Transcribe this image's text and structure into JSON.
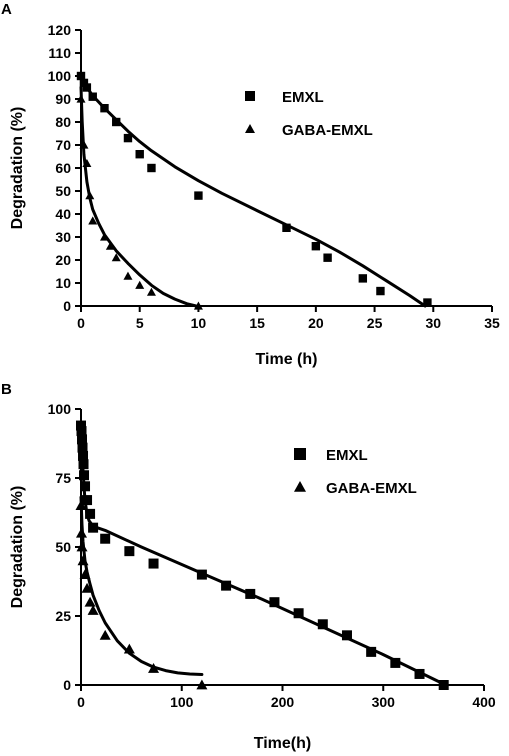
{
  "chart_data": [
    {
      "type": "scatter",
      "panel_label": "A",
      "xlabel": "Time (h)",
      "ylabel": "Degradation (%)",
      "xlim": [
        0,
        35
      ],
      "ylim": [
        0,
        120
      ],
      "xticks": [
        0,
        5,
        10,
        15,
        20,
        25,
        30,
        35
      ],
      "yticks": [
        0,
        10,
        20,
        30,
        40,
        50,
        60,
        70,
        80,
        90,
        100,
        110,
        120
      ],
      "grid": false,
      "legend_position": "right",
      "series": [
        {
          "name": "EMXL",
          "marker": "square",
          "points": [
            [
              0,
              100
            ],
            [
              0.25,
              97
            ],
            [
              0.5,
              95
            ],
            [
              1,
              91
            ],
            [
              2,
              86
            ],
            [
              3,
              80
            ],
            [
              4,
              73
            ],
            [
              5,
              66
            ],
            [
              6,
              60
            ],
            [
              10,
              48
            ],
            [
              17.5,
              34
            ],
            [
              20,
              26
            ],
            [
              21,
              21
            ],
            [
              24,
              12
            ],
            [
              25.5,
              6.5
            ],
            [
              29.5,
              1.5
            ]
          ],
          "fit": [
            [
              0,
              101
            ],
            [
              0.5,
              95
            ],
            [
              1,
              91.5
            ],
            [
              2,
              86
            ],
            [
              3,
              81
            ],
            [
              4,
              76
            ],
            [
              5,
              71.5
            ],
            [
              6,
              67.5
            ],
            [
              8,
              60.5
            ],
            [
              10,
              54.5
            ],
            [
              12,
              49
            ],
            [
              15,
              41.5
            ],
            [
              18,
              34
            ],
            [
              20,
              29
            ],
            [
              22,
              23.5
            ],
            [
              24,
              17.5
            ],
            [
              26,
              11
            ],
            [
              28,
              4.5
            ],
            [
              29.3,
              0
            ]
          ]
        },
        {
          "name": "GABA-EMXL",
          "marker": "triangle",
          "points": [
            [
              0,
              90
            ],
            [
              0.25,
              70
            ],
            [
              0.5,
              62
            ],
            [
              0.75,
              48
            ],
            [
              1,
              37
            ],
            [
              2,
              30
            ],
            [
              2.5,
              26
            ],
            [
              3,
              21
            ],
            [
              4,
              13
            ],
            [
              5,
              9
            ],
            [
              6,
              6
            ],
            [
              10,
              0
            ]
          ],
          "fit": [
            [
              0,
              95
            ],
            [
              0.1,
              80
            ],
            [
              0.25,
              66
            ],
            [
              0.5,
              54
            ],
            [
              0.75,
              47
            ],
            [
              1,
              42
            ],
            [
              1.5,
              36
            ],
            [
              2,
              31
            ],
            [
              3,
              24
            ],
            [
              4,
              18.5
            ],
            [
              5,
              13.5
            ],
            [
              6,
              9
            ],
            [
              7,
              5.5
            ],
            [
              8,
              3
            ],
            [
              9,
              1
            ],
            [
              9.8,
              0
            ]
          ]
        }
      ]
    },
    {
      "type": "scatter",
      "panel_label": "B",
      "xlabel": "Time(h)",
      "ylabel": "Degradation (%)",
      "xlim": [
        0,
        400
      ],
      "ylim": [
        0,
        100
      ],
      "xticks": [
        0,
        100,
        200,
        300,
        400
      ],
      "yticks": [
        0,
        25,
        50,
        75,
        100
      ],
      "grid": false,
      "legend_position": "right",
      "series": [
        {
          "name": "EMXL",
          "marker": "square",
          "points": [
            [
              0,
              94
            ],
            [
              0.5,
              92
            ],
            [
              1,
              89
            ],
            [
              1.5,
              86
            ],
            [
              2,
              83
            ],
            [
              2.5,
              80
            ],
            [
              3,
              76
            ],
            [
              4,
              72
            ],
            [
              6,
              67
            ],
            [
              9,
              62
            ],
            [
              12,
              57
            ],
            [
              24,
              53
            ],
            [
              48,
              48.5
            ],
            [
              72,
              44
            ],
            [
              120,
              40
            ],
            [
              144,
              36
            ],
            [
              168,
              33
            ],
            [
              192,
              30
            ],
            [
              216,
              26
            ],
            [
              240,
              22
            ],
            [
              264,
              18
            ],
            [
              288,
              12
            ],
            [
              312,
              8
            ],
            [
              336,
              4
            ],
            [
              360,
              0
            ]
          ],
          "fit": [
            [
              0,
              95
            ],
            [
              1,
              85
            ],
            [
              2,
              78
            ],
            [
              3,
              72
            ],
            [
              4,
              67
            ],
            [
              6,
              62
            ],
            [
              8,
              59.5
            ],
            [
              12,
              57.5
            ],
            [
              24,
              56
            ],
            [
              60,
              50
            ],
            [
              120,
              40.5
            ],
            [
              180,
              31
            ],
            [
              240,
              21
            ],
            [
              300,
              11
            ],
            [
              362,
              0
            ]
          ]
        },
        {
          "name": "GABA-EMXL",
          "marker": "triangle",
          "points": [
            [
              0,
              65
            ],
            [
              0.5,
              55
            ],
            [
              1,
              50
            ],
            [
              2,
              45
            ],
            [
              4,
              40
            ],
            [
              6,
              35
            ],
            [
              9,
              30
            ],
            [
              12,
              27
            ],
            [
              24,
              18
            ],
            [
              48,
              13
            ],
            [
              72,
              6
            ],
            [
              120,
              0
            ]
          ],
          "fit": [
            [
              0,
              68
            ],
            [
              1,
              58
            ],
            [
              2,
              52
            ],
            [
              4,
              45
            ],
            [
              6,
              41
            ],
            [
              9,
              36.5
            ],
            [
              12,
              32.5
            ],
            [
              18,
              27
            ],
            [
              24,
              22.5
            ],
            [
              36,
              16
            ],
            [
              48,
              11.5
            ],
            [
              60,
              8.5
            ],
            [
              72,
              6.5
            ],
            [
              84,
              5.2
            ],
            [
              96,
              4.4
            ],
            [
              108,
              4
            ],
            [
              120,
              3.8
            ]
          ]
        }
      ]
    }
  ]
}
